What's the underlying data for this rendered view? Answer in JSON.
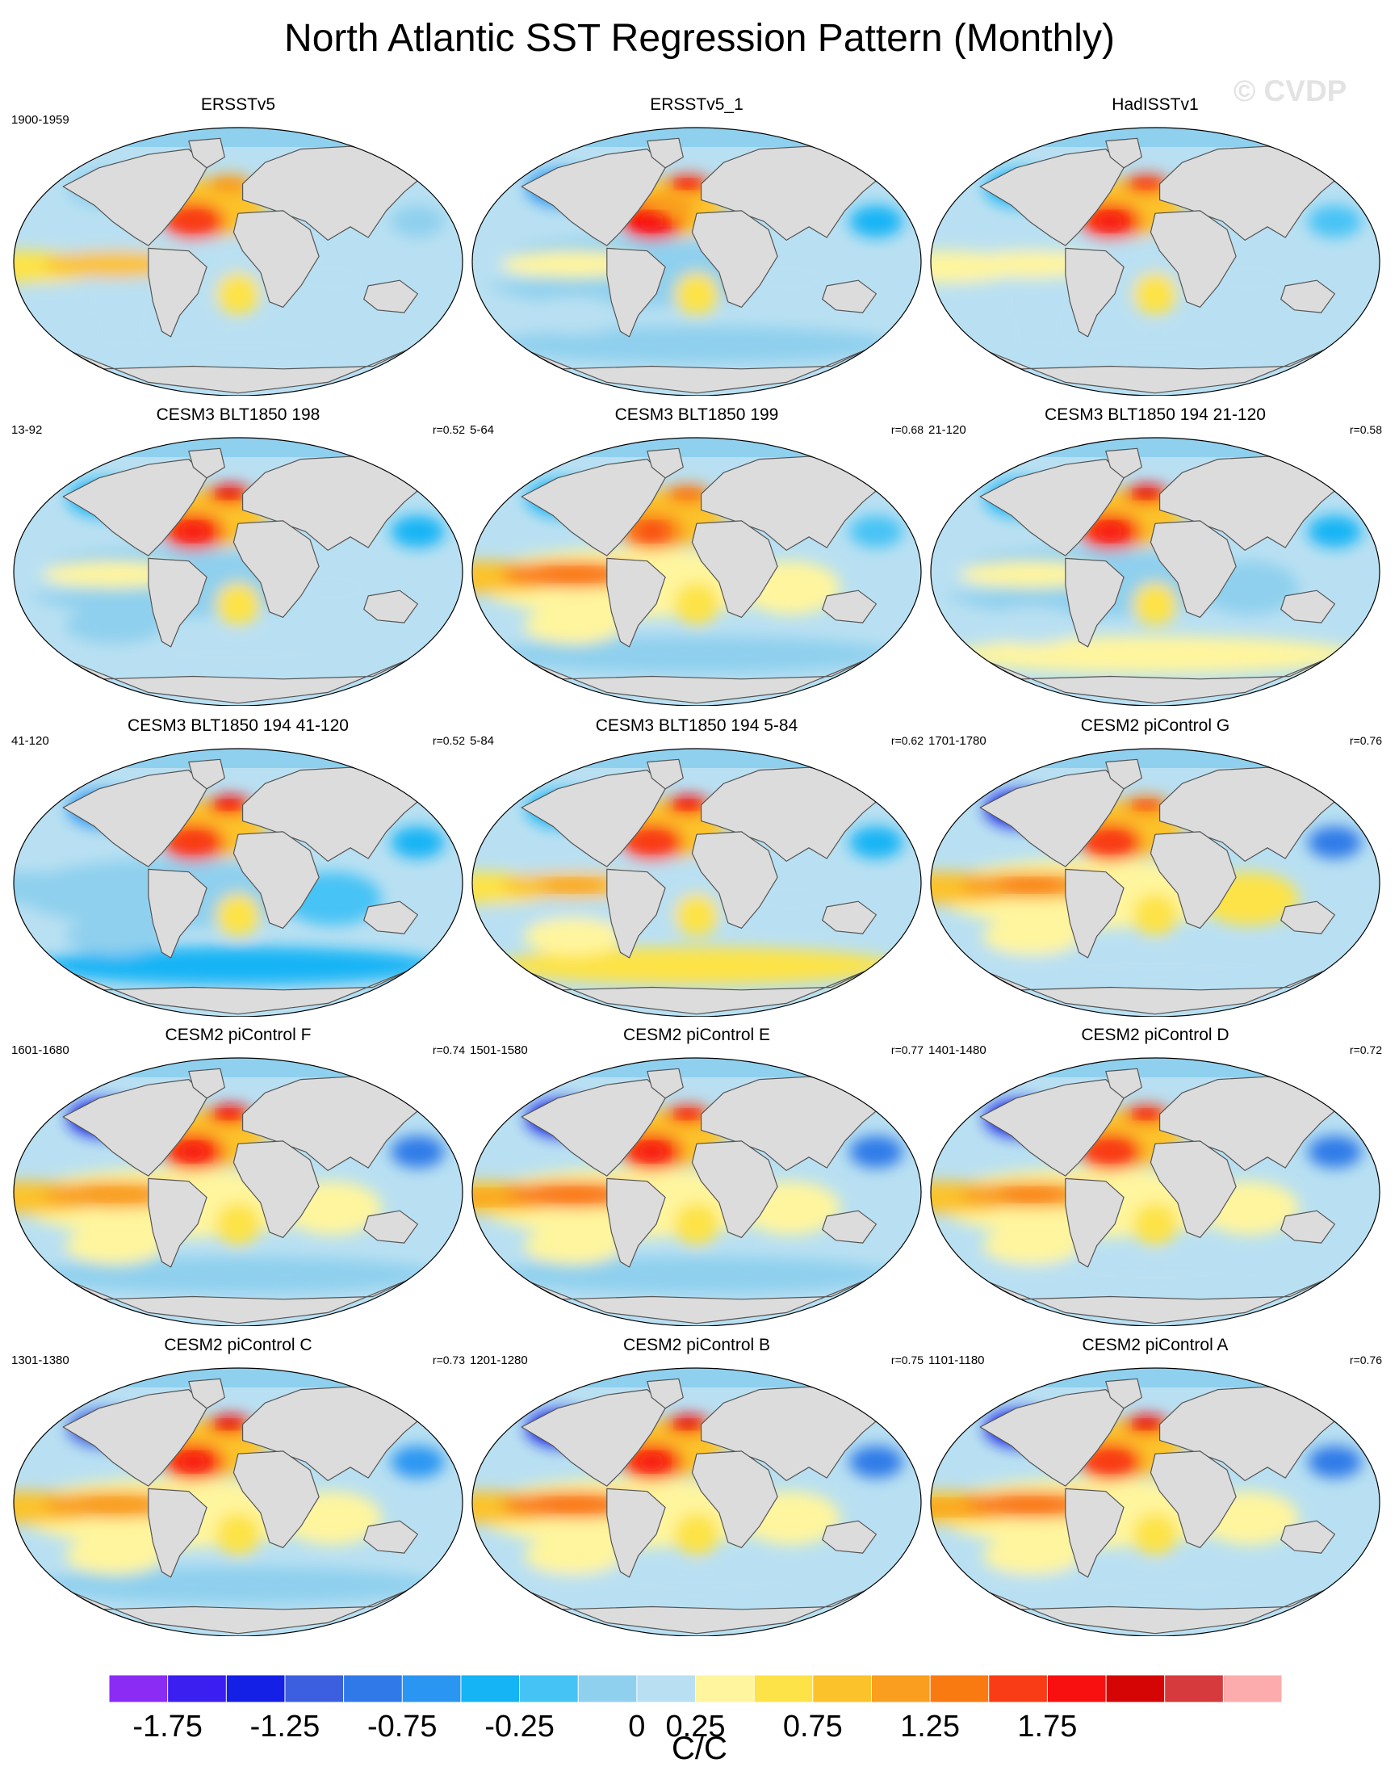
{
  "title": "North Atlantic SST Regression Pattern (Monthly)",
  "watermark": "© CVDP",
  "chart_data": {
    "type": "heatmap",
    "projection": "global-ellipse",
    "units": "C/C",
    "colorbar": {
      "colors": [
        "#8b2cf5",
        "#3b1ef0",
        "#1420e6",
        "#3c5fe0",
        "#2f7ae8",
        "#2a96f2",
        "#14b4f5",
        "#46c3f5",
        "#8fd0ee",
        "#b9e0f2",
        "#fff59e",
        "#fde347",
        "#fcc22c",
        "#f99e1f",
        "#fa7a12",
        "#f93c16",
        "#f81010",
        "#d50505",
        "#d63a3c",
        "#fcacac"
      ],
      "tick_labels": [
        "-1.75",
        "-1.25",
        "-0.75",
        "-0.25",
        "0",
        "0.25",
        "0.75",
        "1.25",
        "1.75"
      ],
      "tick_boundary_index": [
        1,
        3,
        5,
        7,
        9,
        10,
        12,
        14,
        16
      ]
    },
    "panels": [
      {
        "title": "ERSSTv5",
        "years": "1900-1959",
        "corr": "",
        "pat": {
          "north_atlantic": 1.8,
          "tropical_pacific": 1.3,
          "southern": 0.3,
          "north_pacific": 0.2,
          "indian": 0.5,
          "subpolar": 1.3
        }
      },
      {
        "title": "ERSSTv5_1",
        "years": "",
        "corr": "",
        "pat": {
          "north_atlantic": 2.0,
          "tropical_pacific": 0.8,
          "southern": 0.0,
          "north_pacific": -0.6,
          "indian": 0.5,
          "subpolar": 1.9
        }
      },
      {
        "title": "HadISSTv1",
        "years": "",
        "corr": "",
        "pat": {
          "north_atlantic": 1.9,
          "tropical_pacific": 0.9,
          "southern": 0.4,
          "north_pacific": -0.3,
          "indian": 0.6,
          "subpolar": 1.8
        }
      },
      {
        "title": "CESM3 BLT1850 198",
        "years": "13-92",
        "corr": "r=0.52",
        "pat": {
          "north_atlantic": 1.9,
          "tropical_pacific": 0.7,
          "southern": 0.3,
          "north_pacific": -0.5,
          "indian": 0.4,
          "subpolar": 2.1
        }
      },
      {
        "title": "CESM3 BLT1850 199",
        "years": "5-64",
        "corr": "r=0.68",
        "pat": {
          "north_atlantic": 1.7,
          "tropical_pacific": 1.9,
          "southern": 0.1,
          "north_pacific": -0.4,
          "indian": 0.9,
          "subpolar": 1.5
        }
      },
      {
        "title": "CESM3 BLT1850 194 21-120",
        "years": "21-120",
        "corr": "r=0.58",
        "pat": {
          "north_atlantic": 1.9,
          "tropical_pacific": 0.8,
          "southern": 0.5,
          "north_pacific": -0.5,
          "indian": 0.3,
          "subpolar": 2.1
        }
      },
      {
        "title": "CESM3 BLT1850 194 41-120",
        "years": "41-120",
        "corr": "r=0.52",
        "pat": {
          "north_atlantic": 1.8,
          "tropical_pacific": 0.3,
          "southern": -0.4,
          "north_pacific": -0.6,
          "indian": -0.3,
          "subpolar": 2.0
        }
      },
      {
        "title": "CESM3 BLT1850 194 5-84",
        "years": "5-84",
        "corr": "r=0.62",
        "pat": {
          "north_atlantic": 1.8,
          "tropical_pacific": 1.5,
          "southern": 0.9,
          "north_pacific": -0.5,
          "indian": 0.4,
          "subpolar": 2.0
        }
      },
      {
        "title": "CESM2 piControl G",
        "years": "1701-1780",
        "corr": "r=0.76",
        "pat": {
          "north_atlantic": 1.8,
          "tropical_pacific": 1.8,
          "southern": 0.3,
          "north_pacific": -1.4,
          "indian": 1.0,
          "subpolar": 1.7
        }
      },
      {
        "title": "CESM2 piControl F",
        "years": "1601-1680",
        "corr": "r=0.74",
        "pat": {
          "north_atlantic": 1.9,
          "tropical_pacific": 1.7,
          "southern": 0.0,
          "north_pacific": -1.3,
          "indian": 0.9,
          "subpolar": 2.0
        }
      },
      {
        "title": "CESM2 piControl E",
        "years": "1501-1580",
        "corr": "r=0.77",
        "pat": {
          "north_atlantic": 1.9,
          "tropical_pacific": 2.0,
          "southern": 0.2,
          "north_pacific": -1.4,
          "indian": 0.9,
          "subpolar": 1.9
        }
      },
      {
        "title": "CESM2 piControl D",
        "years": "1401-1480",
        "corr": "r=0.72",
        "pat": {
          "north_atlantic": 1.8,
          "tropical_pacific": 1.8,
          "southern": 0.3,
          "north_pacific": -1.5,
          "indian": 0.8,
          "subpolar": 1.9
        }
      },
      {
        "title": "CESM2 piControl C",
        "years": "1301-1380",
        "corr": "r=0.73",
        "pat": {
          "north_atlantic": 1.9,
          "tropical_pacific": 1.7,
          "southern": 0.0,
          "north_pacific": -1.2,
          "indian": 0.9,
          "subpolar": 2.1
        }
      },
      {
        "title": "CESM2 piControl B",
        "years": "1201-1280",
        "corr": "r=0.75",
        "pat": {
          "north_atlantic": 1.9,
          "tropical_pacific": 1.9,
          "southern": 0.3,
          "north_pacific": -1.3,
          "indian": 0.9,
          "subpolar": 2.1
        }
      },
      {
        "title": "CESM2 piControl A",
        "years": "1101-1180",
        "corr": "r=0.76",
        "pat": {
          "north_atlantic": 1.8,
          "tropical_pacific": 2.0,
          "southern": 0.4,
          "north_pacific": -1.5,
          "indian": 0.8,
          "subpolar": 2.1
        }
      }
    ]
  }
}
